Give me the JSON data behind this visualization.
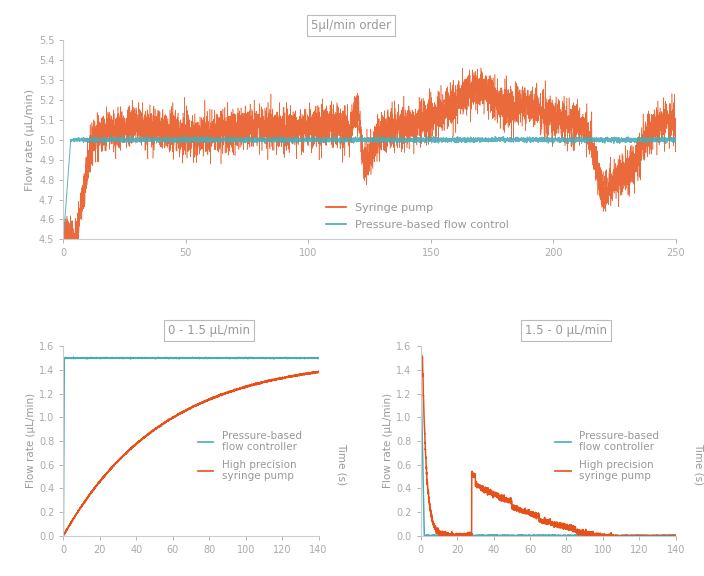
{
  "bg_color": "#ffffff",
  "top_plot": {
    "title": "5µl/min order",
    "ylabel": "Flow rate (µL/min)",
    "ylim": [
      4.5,
      5.5
    ],
    "yticks": [
      4.5,
      4.6,
      4.7,
      4.8,
      4.9,
      5.0,
      5.1,
      5.2,
      5.3,
      5.4,
      5.5
    ],
    "xlim": [
      0,
      250
    ],
    "xticks": [
      0,
      50,
      100,
      150,
      200,
      250
    ],
    "syringe_color": "#E8501A",
    "pressure_color": "#4AABB5",
    "legend_syringe": "Syringe pump",
    "legend_pressure": "Pressure-based flow control"
  },
  "bottom_left": {
    "title": "0 - 1.5 µL/min",
    "ylabel": "Flow rate (µL/min)",
    "xlabel": "Time (s)",
    "ylim": [
      0,
      1.6
    ],
    "yticks": [
      0,
      0.2,
      0.4,
      0.6,
      0.8,
      1.0,
      1.2,
      1.4,
      1.6
    ],
    "xlim": [
      0,
      140
    ],
    "xticks": [
      0,
      20,
      40,
      60,
      80,
      100,
      120,
      140
    ],
    "pressure_color": "#4AABB5",
    "syringe_color": "#E8501A",
    "legend_pressure": "Pressure-based\nflow controller",
    "legend_syringe": "High precision\nsyringe pump"
  },
  "bottom_right": {
    "title": "1.5 - 0 µL/min",
    "ylabel": "Flow rate (µL/min)",
    "xlabel": "Time (s)",
    "ylim": [
      0,
      1.6
    ],
    "yticks": [
      0,
      0.2,
      0.4,
      0.6,
      0.8,
      1.0,
      1.2,
      1.4,
      1.6
    ],
    "xlim": [
      0,
      140
    ],
    "xticks": [
      0,
      20,
      40,
      60,
      80,
      100,
      120,
      140
    ],
    "pressure_color": "#4AABB5",
    "syringe_color": "#E8501A",
    "legend_pressure": "Pressure-based\nflow controller",
    "legend_syringe": "High precision\nsyringe pump"
  },
  "font_color": "#999999",
  "axis_color": "#cccccc",
  "tick_color": "#aaaaaa"
}
